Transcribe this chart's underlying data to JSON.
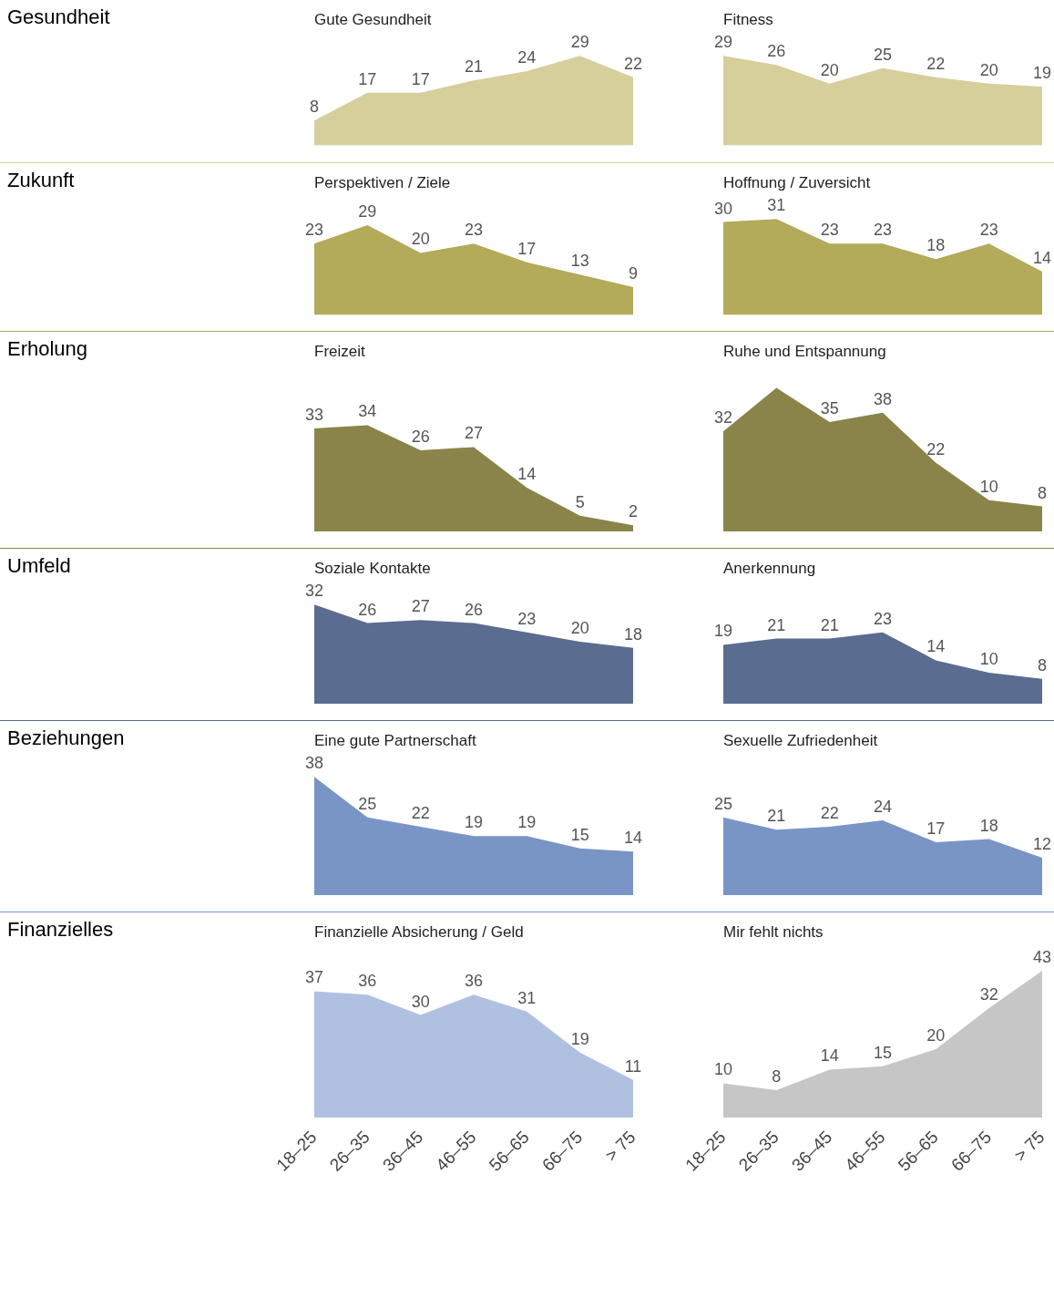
{
  "chart_data": [
    {
      "type": "area",
      "title": "Gute Gesundheit",
      "annotations": [
        "Gesundheit"
      ],
      "categories": [
        null,
        null,
        null,
        null,
        null,
        null,
        null
      ],
      "values": [
        8,
        17,
        17,
        21,
        24,
        29,
        22
      ],
      "color": "#d6cf9c",
      "data_labels": true,
      "tick_labels": false
    },
    {
      "type": "area",
      "title": "Fitness",
      "categories": [
        null,
        null,
        null,
        null,
        null,
        null,
        null
      ],
      "values": [
        29,
        26,
        20,
        25,
        22,
        20,
        19
      ],
      "color": "#d6cf9c",
      "data_labels": true,
      "tick_labels": false
    },
    {
      "type": "area",
      "title": "Perspektiven / Ziele",
      "annotations": [
        "Zukunft"
      ],
      "categories": [
        null,
        null,
        null,
        null,
        null,
        null,
        null
      ],
      "values": [
        23,
        29,
        20,
        23,
        17,
        13,
        9
      ],
      "color": "#b3aa5a",
      "data_labels": true,
      "tick_labels": false
    },
    {
      "type": "area",
      "title": "Hoffnung / Zuversicht",
      "categories": [
        null,
        null,
        null,
        null,
        null,
        null,
        null
      ],
      "values": [
        30,
        31,
        23,
        23,
        18,
        23,
        14
      ],
      "color": "#b3aa5a",
      "data_labels": true,
      "tick_labels": false
    },
    {
      "type": "area",
      "title": "Freizeit",
      "annotations": [
        "Erholung"
      ],
      "categories": [
        null,
        null,
        null,
        null,
        null,
        null,
        null
      ],
      "values": [
        33,
        34,
        26,
        27,
        14,
        5,
        2
      ],
      "color": "#8a844a",
      "data_labels": true,
      "tick_labels": false
    },
    {
      "type": "area",
      "title": "Ruhe und Entspannung",
      "categories": [
        null,
        null,
        null,
        null,
        null,
        null,
        null
      ],
      "values": [
        32,
        46,
        35,
        38,
        22,
        10,
        8
      ],
      "value_labels": [
        "32",
        null,
        "35",
        "38",
        "22",
        "10",
        "8"
      ],
      "color": "#8a844a",
      "tick_labels": false
    },
    {
      "type": "area",
      "title": "Soziale Kontakte",
      "annotations": [
        "Umfeld"
      ],
      "categories": [
        null,
        null,
        null,
        null,
        null,
        null,
        null
      ],
      "values": [
        32,
        26,
        27,
        26,
        23,
        20,
        18
      ],
      "color": "#5a6c8f",
      "data_labels": true,
      "tick_labels": false
    },
    {
      "type": "area",
      "title": "Anerkennung",
      "categories": [
        null,
        null,
        null,
        null,
        null,
        null,
        null
      ],
      "values": [
        19,
        21,
        21,
        23,
        14,
        10,
        8
      ],
      "color": "#5a6c8f",
      "data_labels": true,
      "tick_labels": false
    },
    {
      "type": "area",
      "title": "Eine gute Partnerschaft",
      "annotations": [
        "Beziehungen"
      ],
      "categories": [
        null,
        null,
        null,
        null,
        null,
        null,
        null
      ],
      "values": [
        38,
        25,
        22,
        19,
        19,
        15,
        14
      ],
      "color": "#7895c6",
      "data_labels": true,
      "tick_labels": false
    },
    {
      "type": "area",
      "title": "Sexuelle Zufriedenheit",
      "categories": [
        null,
        null,
        null,
        null,
        null,
        null,
        null
      ],
      "values": [
        25,
        21,
        22,
        24,
        17,
        18,
        12
      ],
      "color": "#7895c6",
      "data_labels": true,
      "tick_labels": false
    },
    {
      "type": "area",
      "title": "Finanzielle Absicherung / Geld",
      "annotations": [
        "Finanzielles"
      ],
      "categories": [
        "18–25",
        "26–35",
        "36–45",
        "46–55",
        "56–65",
        "66–75",
        "> 75"
      ],
      "values": [
        37,
        36,
        30,
        36,
        31,
        19,
        11
      ],
      "color": "#b0c0e0",
      "data_labels": true,
      "tick_labels": "x"
    },
    {
      "type": "area",
      "title": "Mir fehlt nichts",
      "categories": [
        "18–25",
        "26–35",
        "36–45",
        "46–55",
        "56–65",
        "66–75",
        "> 75"
      ],
      "values": [
        10,
        8,
        14,
        15,
        20,
        32,
        43
      ],
      "color": "#c6c6c6",
      "data_labels": true,
      "tick_labels": "x"
    }
  ]
}
